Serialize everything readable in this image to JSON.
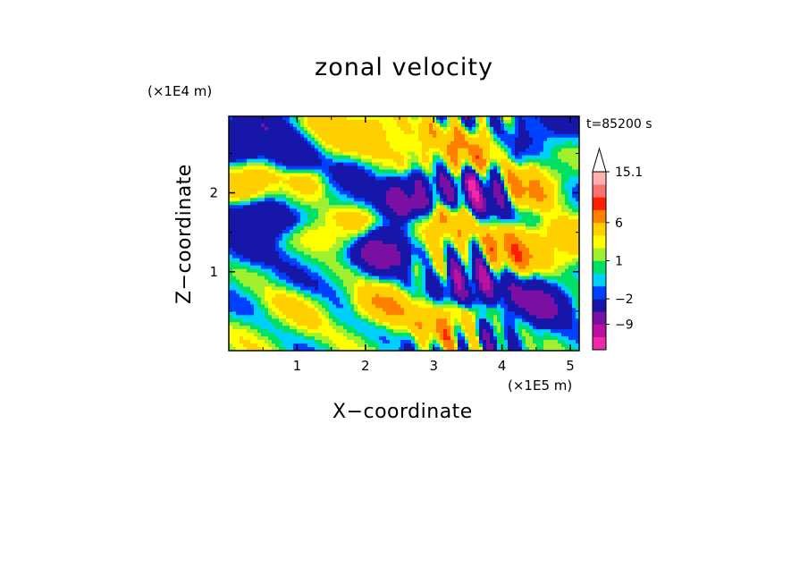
{
  "chart_data": {
    "type": "heatmap",
    "title": "zonal velocity",
    "xlabel": "X−coordinate",
    "ylabel": "Z−coordinate",
    "x_unit": "(×1E5 m)",
    "y_unit": "(×1E4 m)",
    "annotation": "t=85200 s",
    "xlim": [
      0,
      5.13
    ],
    "ylim": [
      0,
      2.97
    ],
    "x_ticks": [
      1,
      2,
      3,
      4,
      5
    ],
    "x_tick_labels": [
      "1",
      "2",
      "3",
      "4",
      "5"
    ],
    "y_ticks": [
      1,
      2
    ],
    "y_tick_labels": [
      "1",
      "2"
    ],
    "grid": false,
    "colorbar": {
      "levels": [
        -16,
        -12,
        -9,
        -6,
        -2,
        -1,
        0,
        1,
        2,
        3,
        6,
        9,
        12,
        15.1
      ],
      "labels": [
        "15.1",
        "6",
        "1",
        "−2",
        "−9"
      ],
      "label_values": [
        15.1,
        6,
        1,
        -2,
        -9
      ],
      "colors": [
        "#ee2aa8",
        "#b8129f",
        "#7a10a3",
        "#1616a8",
        "#0040ff",
        "#00d0ff",
        "#00e064",
        "#a0f030",
        "#ffff00",
        "#ffd000",
        "#ff8000",
        "#ff2000",
        "#ff7070",
        "#ffb0b0"
      ],
      "extend_max": true
    },
    "features": [
      {
        "x": 0.3,
        "z": 2.7,
        "value": -8
      },
      {
        "x": 0.9,
        "z": 2.5,
        "value": -7
      },
      {
        "x": 1.4,
        "z": 2.7,
        "value": 5
      },
      {
        "x": 2.1,
        "z": 2.8,
        "value": 6
      },
      {
        "x": 2.8,
        "z": 2.6,
        "value": 5
      },
      {
        "x": 3.5,
        "z": 2.55,
        "value": 6
      },
      {
        "x": 4.6,
        "z": 2.85,
        "value": -4
      },
      {
        "x": 0.4,
        "z": 2.15,
        "value": 7
      },
      {
        "x": 1.0,
        "z": 2.0,
        "value": 4
      },
      {
        "x": 1.7,
        "z": 2.05,
        "value": -3
      },
      {
        "x": 2.7,
        "z": 1.95,
        "value": -9
      },
      {
        "x": 3.7,
        "z": 2.0,
        "value": -8
      },
      {
        "x": 4.4,
        "z": 2.1,
        "value": 7
      },
      {
        "x": 0.5,
        "z": 1.7,
        "value": -8
      },
      {
        "x": 1.6,
        "z": 1.55,
        "value": 5
      },
      {
        "x": 2.3,
        "z": 1.3,
        "value": -9
      },
      {
        "x": 3.1,
        "z": 1.55,
        "value": 7
      },
      {
        "x": 4.2,
        "z": 1.3,
        "value": 8
      },
      {
        "x": 4.9,
        "z": 1.35,
        "value": 6
      },
      {
        "x": 0.2,
        "z": 1.35,
        "value": -3
      },
      {
        "x": 1.2,
        "z": 1.0,
        "value": -1
      },
      {
        "x": 3.5,
        "z": 0.8,
        "value": -9
      },
      {
        "x": 4.5,
        "z": 0.6,
        "value": -8
      },
      {
        "x": 2.3,
        "z": 0.55,
        "value": 6
      },
      {
        "x": 1.0,
        "z": 0.5,
        "value": 3
      },
      {
        "x": 3.2,
        "z": 0.4,
        "value": 7
      },
      {
        "x": 4.1,
        "z": 0.3,
        "value": -2
      },
      {
        "x": 0.5,
        "z": 0.15,
        "value": 2
      },
      {
        "x": 2.0,
        "z": 0.15,
        "value": 1
      }
    ]
  }
}
